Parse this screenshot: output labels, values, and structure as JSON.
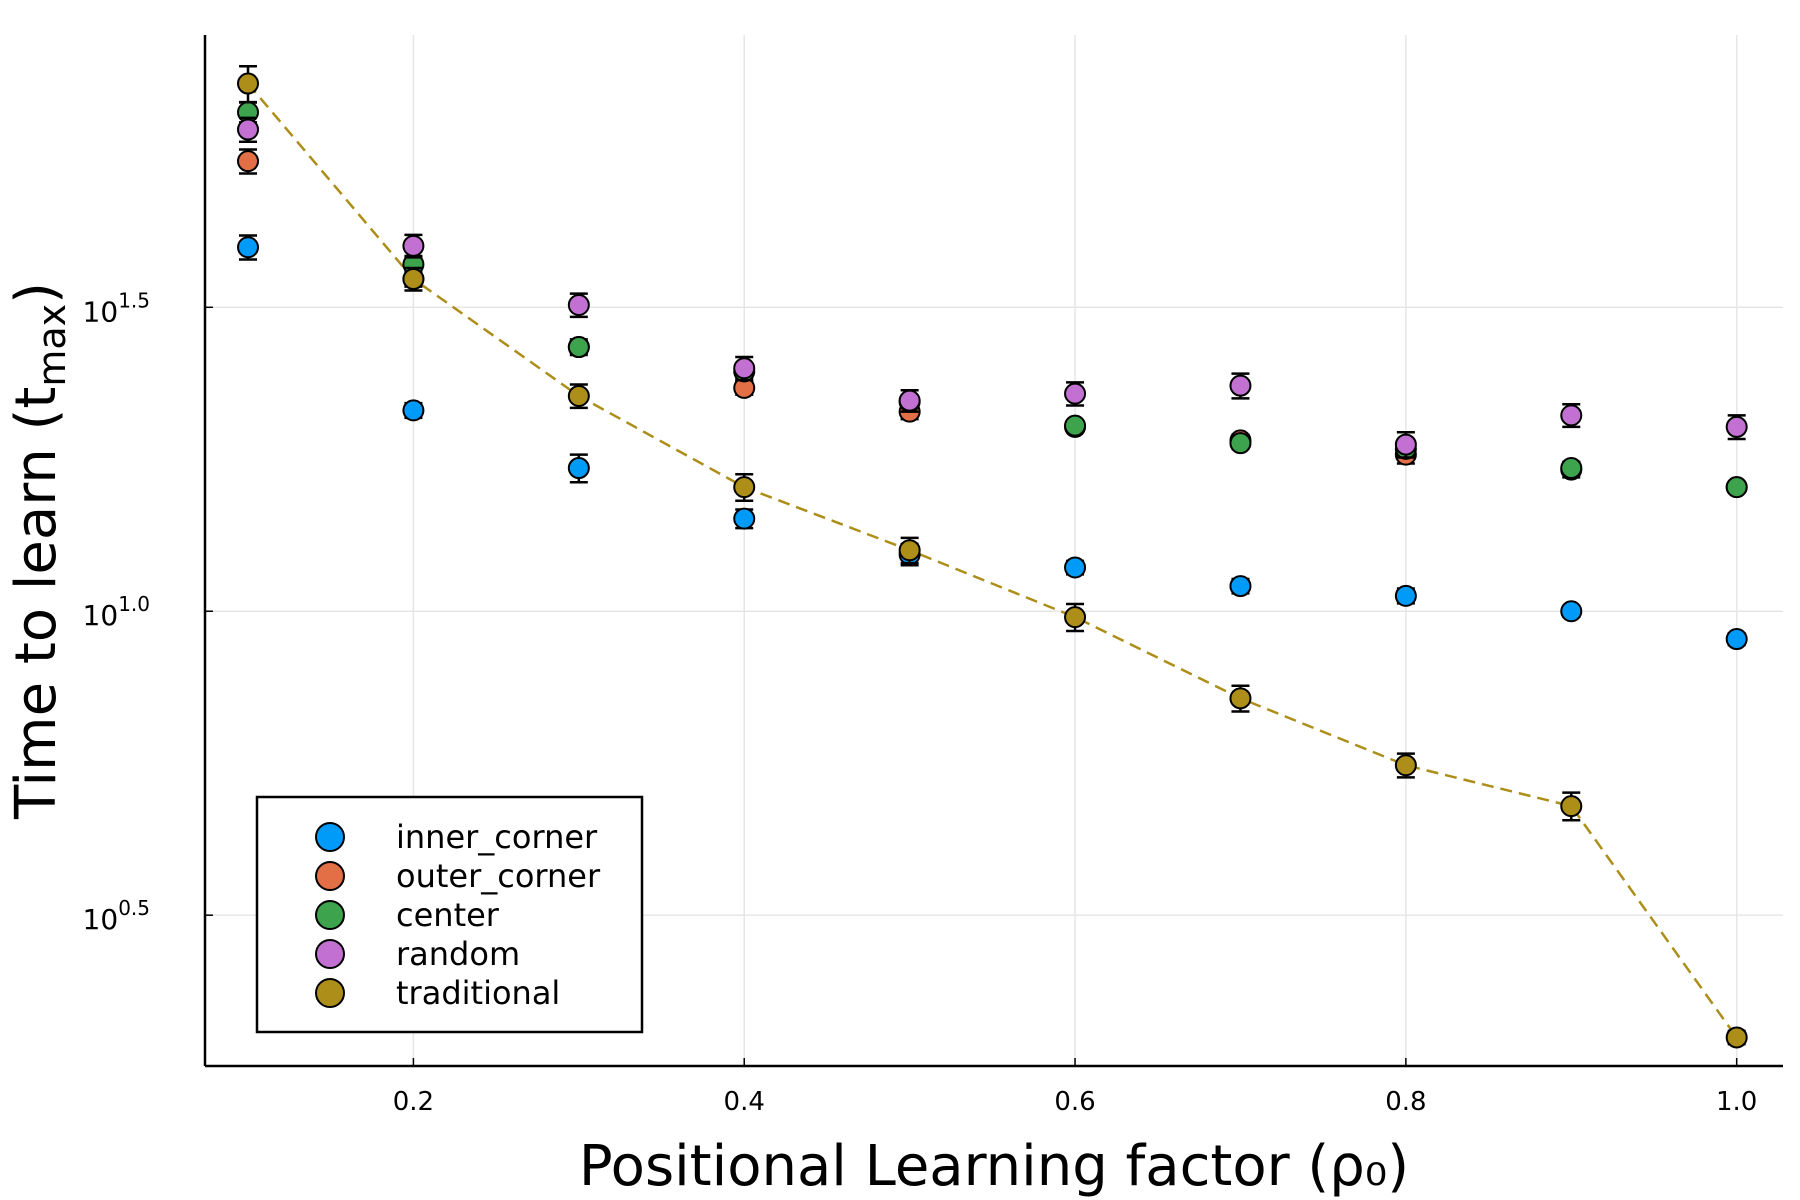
{
  "chart_data": {
    "type": "scatter",
    "log_y": true,
    "grid": true,
    "legend_position": "bottom left",
    "x_label": "Positional Learning factor (ρ₀)",
    "y_label": [
      "Time to learn (t",
      "max",
      ")"
    ],
    "xlim": [
      0.074,
      1.028
    ],
    "xticks": [
      0.2,
      0.4,
      0.6,
      0.8,
      {
        "value": 1,
        "label": "1.0"
      }
    ],
    "ylim": [
      1.786,
      88.7
    ],
    "yticks": [
      {
        "value": 3.1623,
        "label": "10",
        "exponent": "0.5"
      },
      {
        "value": 10,
        "label": "10",
        "exponent": "1.0"
      },
      {
        "value": 31.623,
        "label": "10",
        "exponent": "1.5"
      }
    ],
    "x": [
      0.1,
      0.2,
      0.3,
      0.4,
      0.5,
      0.6,
      0.7,
      0.8,
      0.9,
      1
    ],
    "series": [
      {
        "name": "inner_corner",
        "color": "#009af9",
        "values": [
          39.7,
          21.4,
          17.2,
          14.2,
          12.4,
          11.8,
          11.0,
          10.6,
          10.0,
          9.0
        ],
        "errors": [
          1.8,
          0.6,
          0.9,
          0.5,
          0.5,
          0.3,
          0.3,
          0.3,
          0.2,
          0.2
        ]
      },
      {
        "name": "outer_corner",
        "color": "#e26f46",
        "values": [
          55.0,
          35.2,
          27.2,
          23.3,
          21.3,
          20.1,
          19.1,
          18.1,
          17.1,
          16.0
        ],
        "errors": [
          2.5,
          1.0,
          0.8,
          0.6,
          0.6,
          0.4,
          0.4,
          0.6,
          0.5,
          0.3
        ]
      },
      {
        "name": "center",
        "color": "#3da44d",
        "values": [
          66.2,
          37.2,
          27.2,
          24.8,
          22.1,
          20.2,
          18.9,
          18.5,
          17.2,
          16.0
        ],
        "errors": [
          2.5,
          1.2,
          0.6,
          0.6,
          0.5,
          0.4,
          0.4,
          0.5,
          0.4,
          0.3
        ]
      },
      {
        "name": "random",
        "color": "#c271d2",
        "values": [
          62.0,
          39.9,
          31.9,
          25.1,
          22.2,
          22.8,
          23.5,
          18.8,
          21.0,
          20.1
        ],
        "errors": [
          2.8,
          1.7,
          1.4,
          1.1,
          0.9,
          1.0,
          1.1,
          0.9,
          0.9,
          0.9
        ]
      },
      {
        "name": "traditional",
        "color": "#ac8e18",
        "values": [
          73.8,
          35.2,
          22.6,
          16.0,
          12.6,
          9.78,
          7.19,
          5.58,
          4.78,
          1.99
        ],
        "errors": [
          5.0,
          1.5,
          1.0,
          0.8,
          0.6,
          0.5,
          0.35,
          0.25,
          0.25,
          0.05
        ],
        "dashed_line": true
      }
    ]
  }
}
